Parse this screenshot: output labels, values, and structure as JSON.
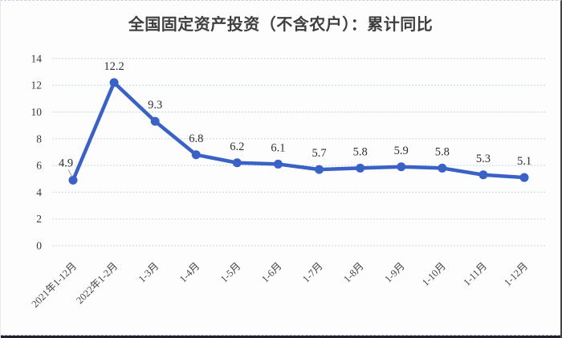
{
  "chart_data": {
    "type": "line",
    "title": "全国固定资产投资（不含农户）：累计同比",
    "categories": [
      "2021年1-12月",
      "2022年1-2月",
      "1-3月",
      "1-4月",
      "1-5月",
      "1-6月",
      "1-7月",
      "1-8月",
      "1-9月",
      "1-10月",
      "1-11月",
      "1-12月"
    ],
    "values": [
      4.9,
      12.2,
      9.3,
      6.8,
      6.2,
      6.1,
      5.7,
      5.8,
      5.9,
      5.8,
      5.3,
      5.1
    ],
    "data_labels": [
      "4.9",
      "12.2",
      "9.3",
      "6.8",
      "6.2",
      "6.1",
      "5.7",
      "5.8",
      "5.9",
      "5.8",
      "5.3",
      "5.1"
    ],
    "xlabel": "",
    "ylabel": "",
    "ylim": [
      0,
      14
    ],
    "yticks": [
      0,
      2,
      4,
      6,
      8,
      10,
      12,
      14
    ],
    "grid": "horizontal-dashed",
    "legend": "none",
    "series_color": "#3a62c6",
    "grid_color": "#c7d6e9",
    "leader_line_color": "#999999",
    "title_color": "#3f3f3f"
  }
}
